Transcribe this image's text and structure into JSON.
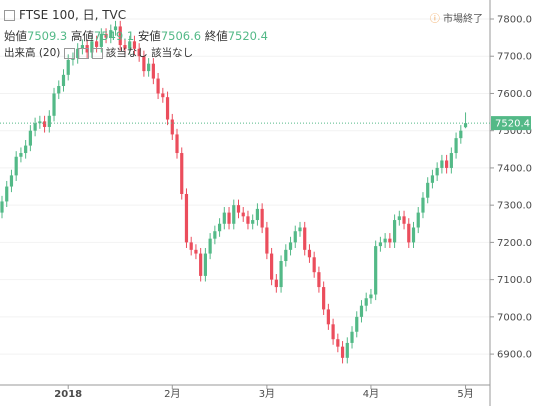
{
  "header": {
    "title": "FTSE 100, 日, TVC",
    "open_label": "始値",
    "high_label": "高値",
    "low_label": "安値",
    "close_label": "終値",
    "volume": "出来高 (20)",
    "na1": "該当なし",
    "na2": "該当なし",
    "status": "市場終了"
  },
  "chart_data": {
    "type": "candlestick",
    "up_color": "#53b987",
    "down_color": "#eb4d5c",
    "categories": [
      null,
      null,
      null,
      null,
      null,
      null,
      null,
      null,
      null,
      null,
      null,
      null,
      null,
      null,
      "2018",
      null,
      null,
      null,
      null,
      null,
      null,
      null,
      null,
      null,
      null,
      null,
      null,
      null,
      null,
      null,
      null,
      null,
      null,
      null,
      null,
      null,
      "2月",
      null,
      null,
      null,
      null,
      null,
      null,
      null,
      null,
      null,
      null,
      null,
      null,
      null,
      null,
      null,
      null,
      null,
      null,
      null,
      "3月",
      null,
      null,
      null,
      null,
      null,
      null,
      null,
      null,
      null,
      null,
      null,
      null,
      null,
      null,
      null,
      null,
      null,
      null,
      null,
      null,
      null,
      "4月",
      null,
      null,
      null,
      null,
      null,
      null,
      null,
      null,
      null,
      null,
      null,
      null,
      null,
      null,
      null,
      null,
      null,
      null,
      null,
      "5月"
    ],
    "open": [
      7280,
      7310,
      7350,
      7380,
      7430,
      7440,
      7460,
      7500,
      7520,
      7525,
      7510,
      7540,
      7600,
      7620,
      7650,
      7690,
      7695,
      7720,
      7730,
      7710,
      7740,
      7725,
      7760,
      7750,
      7770,
      7780,
      7730,
      7720,
      7740,
      7720,
      7700,
      7660,
      7680,
      7640,
      7600,
      7590,
      7530,
      7490,
      7440,
      7330,
      7200,
      7180,
      7170,
      7110,
      7170,
      7210,
      7230,
      7250,
      7280,
      7250,
      7300,
      7280,
      7270,
      7250,
      7260,
      7290,
      7240,
      7170,
      7100,
      7080,
      7150,
      7180,
      7200,
      7230,
      7240,
      7180,
      7160,
      7120,
      7080,
      7020,
      6980,
      6940,
      6920,
      6890,
      6930,
      6960,
      7000,
      7030,
      7050,
      7060,
      7190,
      7200,
      7210,
      7200,
      7260,
      7270,
      7250,
      7200,
      7240,
      7280,
      7320,
      7360,
      7380,
      7400,
      7420,
      7400,
      7440,
      7480,
      7509.3
    ],
    "high": [
      7325,
      7365,
      7395,
      7445,
      7455,
      7475,
      7515,
      7535,
      7540,
      7540,
      7555,
      7615,
      7635,
      7665,
      7705,
      7710,
      7735,
      7745,
      7745,
      7755,
      7755,
      7775,
      7775,
      7785,
      7795,
      7795,
      7745,
      7755,
      7755,
      7735,
      7715,
      7695,
      7695,
      7655,
      7615,
      7605,
      7545,
      7505,
      7455,
      7345,
      7215,
      7195,
      7185,
      7185,
      7225,
      7245,
      7265,
      7295,
      7295,
      7315,
      7315,
      7295,
      7285,
      7275,
      7305,
      7305,
      7255,
      7185,
      7115,
      7165,
      7195,
      7215,
      7245,
      7255,
      7255,
      7195,
      7175,
      7135,
      7095,
      7035,
      6995,
      6955,
      6935,
      6945,
      6975,
      7015,
      7045,
      7065,
      7075,
      7205,
      7215,
      7225,
      7225,
      7275,
      7285,
      7285,
      7265,
      7255,
      7295,
      7335,
      7375,
      7395,
      7415,
      7435,
      7435,
      7455,
      7495,
      7515,
      7549.1
    ],
    "low": [
      7265,
      7295,
      7335,
      7365,
      7415,
      7425,
      7445,
      7485,
      7505,
      7495,
      7495,
      7525,
      7585,
      7605,
      7635,
      7675,
      7680,
      7705,
      7695,
      7695,
      7710,
      7710,
      7735,
      7735,
      7755,
      7715,
      7705,
      7705,
      7705,
      7685,
      7645,
      7645,
      7625,
      7585,
      7575,
      7515,
      7475,
      7425,
      7315,
      7185,
      7165,
      7155,
      7095,
      7095,
      7155,
      7195,
      7215,
      7235,
      7235,
      7235,
      7265,
      7255,
      7235,
      7235,
      7245,
      7225,
      7155,
      7085,
      7065,
      7065,
      7135,
      7165,
      7185,
      7215,
      7165,
      7145,
      7105,
      7065,
      7005,
      6965,
      6925,
      6905,
      6875,
      6875,
      6915,
      6945,
      6985,
      7015,
      7035,
      7045,
      7175,
      7185,
      7185,
      7185,
      7245,
      7235,
      7185,
      7185,
      7225,
      7265,
      7305,
      7345,
      7365,
      7385,
      7385,
      7385,
      7425,
      7465,
      7506.6
    ],
    "close": [
      7310,
      7350,
      7380,
      7430,
      7440,
      7460,
      7500,
      7520,
      7525,
      7510,
      7540,
      7600,
      7620,
      7650,
      7690,
      7695,
      7720,
      7730,
      7710,
      7740,
      7725,
      7760,
      7750,
      7770,
      7780,
      7730,
      7720,
      7740,
      7720,
      7700,
      7660,
      7680,
      7640,
      7600,
      7590,
      7530,
      7490,
      7440,
      7330,
      7200,
      7180,
      7170,
      7110,
      7170,
      7210,
      7230,
      7250,
      7280,
      7250,
      7300,
      7280,
      7270,
      7250,
      7260,
      7290,
      7240,
      7170,
      7100,
      7080,
      7150,
      7180,
      7200,
      7230,
      7240,
      7180,
      7160,
      7120,
      7080,
      7020,
      6980,
      6940,
      6920,
      6890,
      6930,
      6960,
      7000,
      7030,
      7050,
      7060,
      7190,
      7200,
      7210,
      7200,
      7260,
      7270,
      7250,
      7200,
      7240,
      7280,
      7320,
      7360,
      7380,
      7400,
      7420,
      7400,
      7440,
      7480,
      7500,
      7520.4
    ],
    "ylim": [
      6817,
      7851
    ],
    "yticks": [
      {
        "value": 6900,
        "label": "6900.0"
      },
      {
        "value": 7000,
        "label": "7000.0"
      },
      {
        "value": 7100,
        "label": "7100.0"
      },
      {
        "value": 7200,
        "label": "7200.0"
      },
      {
        "value": 7300,
        "label": "7300.0"
      },
      {
        "value": 7400,
        "label": "7400.0"
      },
      {
        "value": 7500,
        "label": "7500.0"
      },
      {
        "value": 7600,
        "label": "7600.0"
      },
      {
        "value": 7700,
        "label": "7700.0"
      },
      {
        "value": 7800,
        "label": "7800.0"
      }
    ],
    "grid": true
  }
}
